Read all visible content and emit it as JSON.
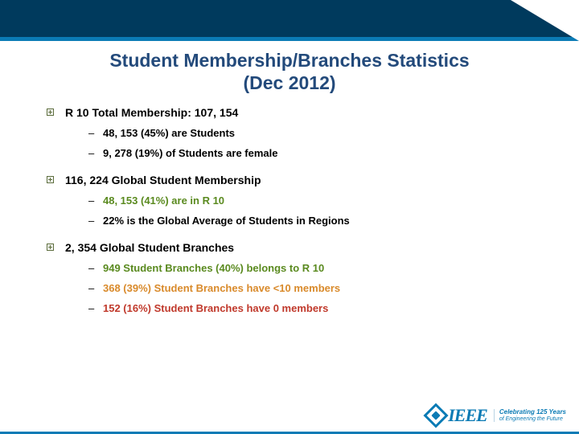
{
  "colors": {
    "header_band": "#003a5d",
    "accent": "#0b7bb5",
    "title_text": "#234a7b",
    "bullet_outline": "#5a6b3a",
    "text_black": "#000000",
    "text_green": "#5a8a1f",
    "text_orange": "#d98a2b",
    "text_red": "#c0392b",
    "background": "#ffffff"
  },
  "typography": {
    "title_fontsize": 23,
    "l1_fontsize": 14,
    "sub_fontsize": 13,
    "font_family": "Verdana"
  },
  "title_line1": "Student Membership/Branches Statistics",
  "title_line2": "(Dec 2012)",
  "sections": [
    {
      "header": "R 10 Total Membership: 107, 154",
      "items": [
        {
          "text": "48, 153 (45%) are Students",
          "color": "c-black"
        },
        {
          "text": "9, 278 (19%) of Students are female",
          "color": "c-black"
        }
      ]
    },
    {
      "header": "116, 224 Global Student Membership",
      "items": [
        {
          "text": "48, 153 (41%) are in R 10",
          "color": "c-green"
        },
        {
          "text": "22% is the Global Average of Students in Regions",
          "color": "c-black"
        }
      ]
    },
    {
      "header": "2, 354 Global Student Branches",
      "items": [
        {
          "text": "949 Student Branches (40%) belongs to R 10",
          "color": "c-green"
        },
        {
          "text": "368 (39%) Student Branches have <10 members",
          "color": "c-orange"
        },
        {
          "text": "152 (16%) Student Branches have 0 members",
          "color": "c-red"
        }
      ]
    }
  ],
  "logo": {
    "brand": "IEEE",
    "tagline1": "Celebrating 125 Years",
    "tagline2": "of Engineering the Future"
  }
}
